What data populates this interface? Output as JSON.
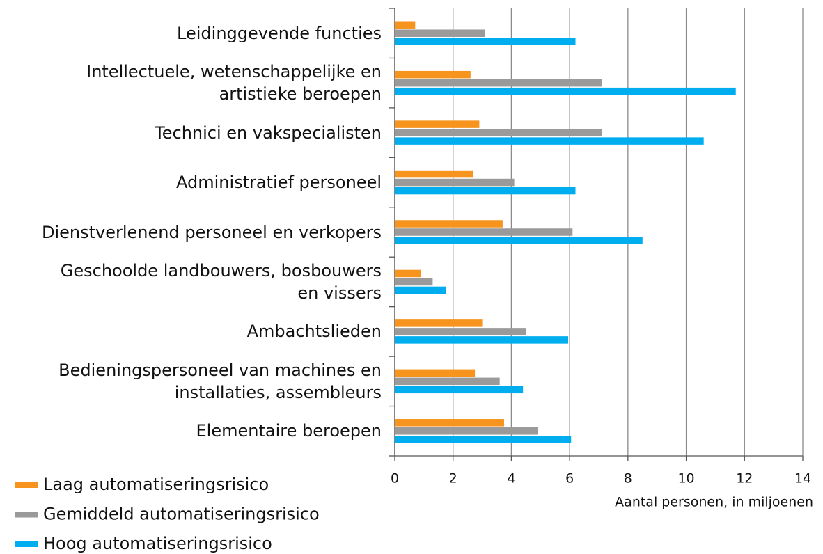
{
  "chart_data": {
    "type": "barh",
    "categories": [
      "Leidinggevende functies",
      "Intellectuele, wetenschappelijke en\nartistieke beroepen",
      "Technici en vakspecialisten",
      "Administratief personeel",
      "Dienstverlenend personeel en verkopers",
      "Geschoolde landbouwers, bosbouwers\nen vissers",
      "Ambachtslieden",
      "Bedieningspersoneel van machines en\ninstallaties, assembleurs",
      "Elementaire beroepen"
    ],
    "series": [
      {
        "name": "Laag automatiseringsrisico",
        "color": "#f7941d",
        "values": [
          0.7,
          2.6,
          2.9,
          2.7,
          3.7,
          0.9,
          3.0,
          2.75,
          3.75
        ]
      },
      {
        "name": "Gemiddeld automatiseringsrisico",
        "color": "#9a9a9a",
        "values": [
          3.1,
          7.1,
          7.1,
          4.1,
          6.1,
          1.3,
          4.5,
          3.6,
          4.9
        ]
      },
      {
        "name": "Hoog automatiseringsrisico",
        "color": "#00aeef",
        "values": [
          6.2,
          11.7,
          10.6,
          6.2,
          8.5,
          1.75,
          5.95,
          4.4,
          6.05
        ]
      }
    ],
    "x_label": "Aantal personen, in miljoenen",
    "xlim": [
      0,
      14
    ],
    "xticks": [
      0,
      2,
      4,
      6,
      8,
      10,
      12,
      14
    ],
    "grid": true
  }
}
